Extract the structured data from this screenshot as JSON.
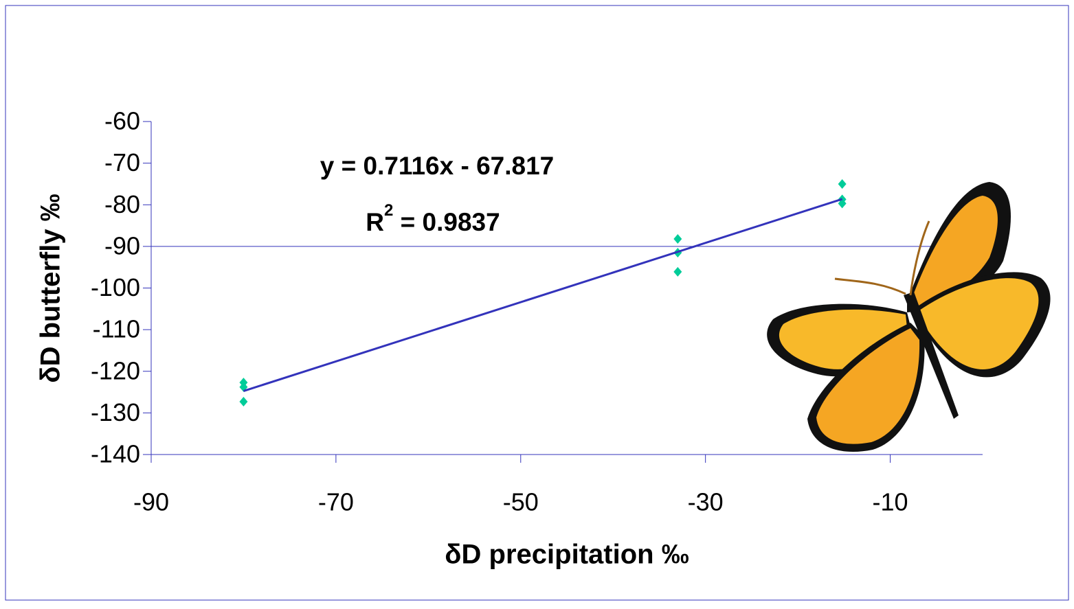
{
  "chart_data": {
    "type": "scatter",
    "x_label": "δD precipitation ‰",
    "y_label": "δD butterfly ‰",
    "equation": "y = 0.7116x - 67.817",
    "r2_label": {
      "base": "R",
      "sup": "2",
      "rest": " = 0.9837"
    },
    "series": [
      {
        "color": "#00cc99",
        "x": [
          -80,
          -80,
          -80,
          -33,
          -33,
          -33,
          -15.2,
          -15.2,
          -15.2
        ],
        "values": [
          -122.7,
          -123.8,
          -127.3,
          -88.2,
          -91.5,
          -96.1,
          -75,
          -78.7,
          -79.7
        ]
      }
    ],
    "trendline": {
      "color": "#3333bb",
      "slope": 0.7116,
      "intercept": -67.817,
      "x": [
        -80,
        -15.2
      ]
    },
    "reference_line": {
      "y": -90,
      "color": "#3333bb"
    },
    "xlim": [
      -90,
      0
    ],
    "xticks": [
      -90,
      -70,
      -50,
      -30,
      -10
    ],
    "ylim": [
      -140,
      -60
    ],
    "yticks": [
      -140,
      -130,
      -120,
      -110,
      -100,
      -90,
      -80,
      -70,
      -60
    ],
    "axis_color": "#3333bb"
  }
}
